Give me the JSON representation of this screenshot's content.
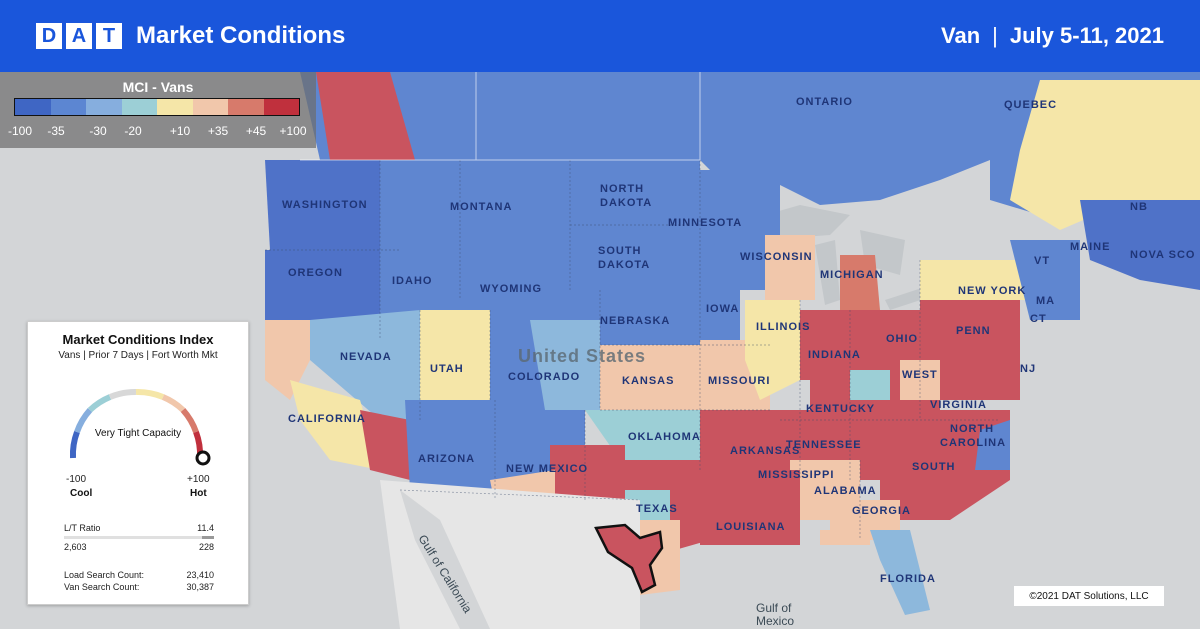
{
  "header": {
    "logo_letters": [
      "D",
      "A",
      "T"
    ],
    "title": "Market Conditions",
    "equipment": "Van",
    "separator": "|",
    "date_range": "July 5-11, 2021"
  },
  "legend": {
    "title": "MCI - Vans",
    "ticks": [
      "-100",
      "-35",
      "-30",
      "-20",
      "+10",
      "+35",
      "+45",
      "+100"
    ],
    "colors": [
      "#3f66c4",
      "#5c86d2",
      "#86aede",
      "#9ccfd6",
      "#f5e6a8",
      "#f1c7ab",
      "#d77a6b",
      "#c0303d"
    ]
  },
  "card": {
    "title": "Market Conditions Index",
    "subtitle": "Vans | Prior 7 Days | Fort Worth Mkt",
    "gauge_label": "Very Tight Capacity",
    "gauge_value": 100,
    "min_label": "-100",
    "max_label": "+100",
    "cool_label": "Cool",
    "hot_label": "Hot",
    "lt_ratio_label": "L/T Ratio",
    "lt_ratio_value": "11.4",
    "loads_value": "2,603",
    "trucks_value": "228",
    "load_search_label": "Load Search Count:",
    "load_search_value": "23,410",
    "van_search_label": "Van Search Count:",
    "van_search_value": "30,387"
  },
  "map_labels": {
    "ontario": "ONTARIO",
    "quebec": "QUEBEC",
    "washington": "WASHINGTON",
    "montana": "MONTANA",
    "north_dakota_1": "NORTH",
    "north_dakota_2": "DAKOTA",
    "minnesota": "MINNESOTA",
    "south_dakota_1": "SOUTH",
    "south_dakota_2": "DAKOTA",
    "oregon": "OREGON",
    "idaho": "IDAHO",
    "wyoming": "WYOMING",
    "wisconsin": "WISCONSIN",
    "michigan": "MICHIGAN",
    "new_york": "NEW YORK",
    "maine": "MAINE",
    "nb": "NB",
    "nova_scotia": "NOVA SCO",
    "nevada": "NEVADA",
    "utah": "UTAH",
    "colorado": "COLORADO",
    "nebraska": "NEBRASKA",
    "iowa": "IOWA",
    "illinois": "ILLINOIS",
    "indiana": "INDIANA",
    "ohio": "OHIO",
    "penn": "PENN",
    "nj": "NJ",
    "ct": "CT",
    "ma": "MA",
    "vt": "VT",
    "united_states": "United States",
    "kansas": "KANSAS",
    "missouri": "MISSOURI",
    "kentucky": "KENTUCKY",
    "west_virginia_1": "WEST",
    "virginia": "VIRGINIA",
    "california": "CALIFORNIA",
    "arizona": "ARIZONA",
    "new_mexico": "NEW MEXICO",
    "oklahoma": "OKLAHOMA",
    "tennessee": "TENNESSEE",
    "north_carolina_1": "NORTH",
    "north_carolina_2": "CAROLINA",
    "arkansas": "ARKANSAS",
    "mississippi": "MISSISSIPPI",
    "south_carolina": "SOUTH",
    "alabama": "ALABAMA",
    "georgia": "GEORGIA",
    "texas": "TEXAS",
    "louisiana": "LOUISIANA",
    "florida": "FLORIDA",
    "gulf_california": "Gulf of California",
    "gulf_mexico_1": "Gulf of",
    "gulf_mexico_2": "Mexico"
  },
  "copyright": "©2021 DAT Solutions, LLC"
}
